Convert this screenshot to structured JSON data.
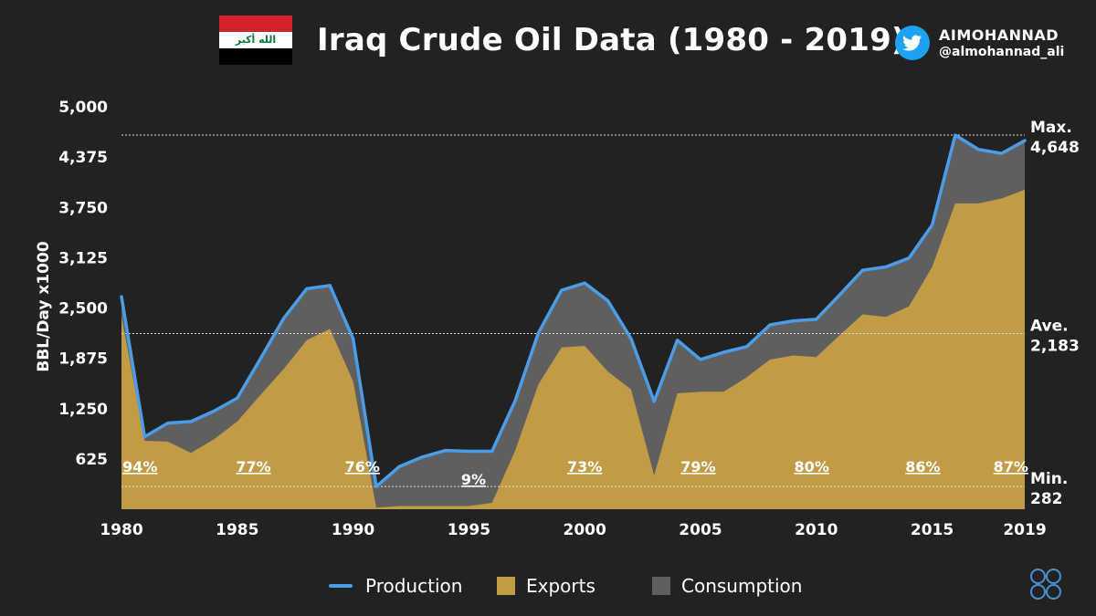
{
  "header": {
    "title": "Iraq Crude Oil Data (1980 - 2019)",
    "flag_script": "الله أكبر",
    "brand_name": "AIMOHANNAD",
    "brand_handle": "@almohannad_ali"
  },
  "colors": {
    "background": "#222222",
    "production": "#4a9de6",
    "exports": "#c19b45",
    "consumption": "#5f5f5f"
  },
  "chart_data": {
    "type": "area",
    "title": "Iraq Crude Oil Data (1980 - 2019)",
    "ylabel": "BBL/Day x1000",
    "xlabel": "",
    "ylim": [
      0,
      5000
    ],
    "xlim": [
      1980,
      2019
    ],
    "y_ticks": [
      625,
      1250,
      1875,
      2500,
      3125,
      3750,
      4375,
      5000
    ],
    "y_tick_labels": [
      "625",
      "1,250",
      "1,875",
      "2,500",
      "3,125",
      "3,750",
      "4,375",
      "5,000"
    ],
    "x_ticks": [
      1980,
      1985,
      1990,
      1995,
      2000,
      2005,
      2010,
      2015,
      2019
    ],
    "x_tick_labels": [
      "1980",
      "1985",
      "1990",
      "1995",
      "2000",
      "2005",
      "2010",
      "2015",
      "2019"
    ],
    "x": [
      1980,
      1981,
      1982,
      1983,
      1984,
      1985,
      1986,
      1987,
      1988,
      1989,
      1990,
      1991,
      1992,
      1993,
      1994,
      1995,
      1996,
      1997,
      1998,
      1999,
      2000,
      2001,
      2002,
      2003,
      2004,
      2005,
      2006,
      2007,
      2008,
      2009,
      2010,
      2011,
      2012,
      2013,
      2014,
      2015,
      2016,
      2017,
      2018,
      2019
    ],
    "series": [
      {
        "name": "Production",
        "kind": "line",
        "values": [
          2640,
          900,
          1070,
          1090,
          1220,
          1380,
          1870,
          2370,
          2740,
          2780,
          2120,
          282,
          530,
          650,
          730,
          720,
          720,
          1350,
          2190,
          2720,
          2810,
          2590,
          2120,
          1340,
          2100,
          1860,
          1950,
          2020,
          2290,
          2340,
          2360,
          2660,
          2970,
          3010,
          3120,
          3530,
          4648,
          4470,
          4420,
          4580
        ]
      },
      {
        "name": "Exports",
        "kind": "area",
        "values": [
          2400,
          850,
          840,
          700,
          870,
          1090,
          1420,
          1740,
          2100,
          2240,
          1590,
          20,
          40,
          40,
          40,
          40,
          80,
          730,
          1550,
          2010,
          2030,
          1710,
          1490,
          420,
          1440,
          1460,
          1460,
          1640,
          1860,
          1910,
          1890,
          2160,
          2420,
          2390,
          2520,
          3010,
          3800,
          3800,
          3860,
          3970
        ]
      },
      {
        "name": "Consumption",
        "kind": "area_between",
        "values": "production - exports"
      }
    ],
    "reference_lines": [
      {
        "label": "Max.",
        "value_label": "4,648",
        "value": 4648
      },
      {
        "label": "Ave.",
        "value_label": "2,183",
        "value": 2183
      },
      {
        "label": "Min.",
        "value_label": "282",
        "value": 282
      }
    ],
    "export_share_annotations": [
      {
        "label": "94%",
        "x": 1980.8
      },
      {
        "label": "77%",
        "x": 1985.7
      },
      {
        "label": "76%",
        "x": 1990.4
      },
      {
        "label": "9%",
        "x": 1995.2
      },
      {
        "label": "73%",
        "x": 2000.0
      },
      {
        "label": "79%",
        "x": 2004.9
      },
      {
        "label": "80%",
        "x": 2009.8
      },
      {
        "label": "86%",
        "x": 2014.6
      },
      {
        "label": "87%",
        "x": 2018.4
      }
    ],
    "legend": [
      "Production",
      "Exports",
      "Consumption"
    ],
    "legend_position": "bottom"
  }
}
